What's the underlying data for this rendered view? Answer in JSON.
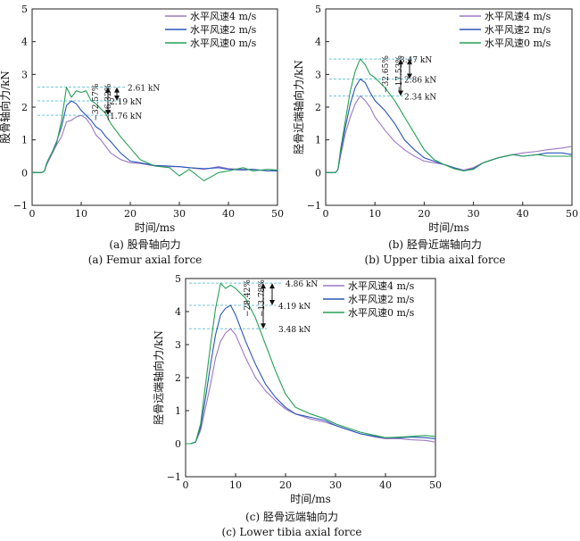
{
  "figure": {
    "panels": [
      {
        "id": "a",
        "caption_cn": "(a) 股骨轴向力",
        "caption_en": "(a) Femur axial force",
        "ylabel": "股骨轴向力/kN",
        "xlabel": "时间/ms"
      },
      {
        "id": "b",
        "caption_cn": "(b) 胫骨近端轴向力",
        "caption_en": "(b) Upper tibia aixal force",
        "ylabel": "胫骨近端轴向力/kN",
        "xlabel": "时间/ms"
      },
      {
        "id": "c",
        "caption_cn": "(c) 胫骨远端轴向力",
        "caption_en": "(c) Lower tibia axial force",
        "ylabel": "胫骨远端轴向力/kN",
        "xlabel": "时间/ms"
      }
    ]
  },
  "colors": {
    "s4": "#9b78c4",
    "s2": "#2a55b8",
    "s0": "#25a055",
    "ref": "#6ec6d8"
  },
  "chart_data": [
    {
      "type": "line",
      "xlabel": "时间/ms",
      "ylabel": "股骨轴向力/kN",
      "xlim": [
        0,
        50
      ],
      "ylim": [
        -1,
        5
      ],
      "xticks": [
        0,
        10,
        20,
        30,
        40,
        50
      ],
      "yticks": [
        -1,
        0,
        1,
        2,
        3,
        4,
        5
      ],
      "legend": "top-right",
      "annotations": {
        "values": [
          "2.61 kN",
          "2.19 kN",
          "1.76 kN"
        ],
        "percents": [
          "32.57%",
          "16.32%"
        ]
      },
      "series": [
        {
          "name": "水平风速4 m/s",
          "color": "#9b78c4",
          "x": [
            0,
            1,
            2,
            2.5,
            3,
            4,
            5,
            6,
            7,
            8,
            9,
            10,
            11,
            12,
            13,
            14,
            15,
            16,
            18,
            20,
            22,
            25,
            28,
            30,
            32,
            35,
            38,
            40,
            43,
            45,
            48,
            50
          ],
          "y": [
            0,
            0,
            0,
            0.05,
            0.25,
            0.55,
            0.85,
            1.1,
            1.55,
            1.6,
            1.7,
            1.75,
            1.65,
            1.45,
            1.15,
            1,
            0.8,
            0.6,
            0.4,
            0.3,
            0.28,
            0.2,
            0.18,
            0.18,
            0.15,
            0.1,
            0.18,
            0.12,
            0.1,
            0.1,
            0.05,
            0.08
          ]
        },
        {
          "name": "水平风速2 m/s",
          "color": "#2a55b8",
          "x": [
            0,
            1,
            2,
            2.5,
            3,
            4,
            5,
            6,
            7,
            8,
            9,
            10,
            11,
            12,
            13,
            14,
            15,
            16,
            18,
            20,
            22,
            25,
            28,
            30,
            32,
            35,
            38,
            40,
            43,
            45,
            48,
            50
          ],
          "y": [
            0,
            0,
            0,
            0.05,
            0.3,
            0.6,
            0.95,
            1.4,
            2.05,
            2.19,
            2.1,
            1.9,
            1.75,
            1.6,
            1.4,
            1.3,
            1.1,
            0.95,
            0.6,
            0.35,
            0.3,
            0.22,
            0.2,
            0.18,
            0.15,
            0.12,
            0.15,
            0.1,
            0.08,
            0.1,
            0.05,
            0.05
          ]
        },
        {
          "name": "水平风速0 m/s",
          "color": "#25a055",
          "x": [
            0,
            1,
            2,
            2.5,
            3,
            4,
            5,
            6,
            7,
            8,
            9,
            10,
            11,
            12,
            13,
            14,
            15,
            16,
            18,
            20,
            22,
            25,
            28,
            30,
            32,
            35,
            38,
            40,
            43,
            45,
            48,
            50
          ],
          "y": [
            0,
            0,
            0,
            0.05,
            0.3,
            0.6,
            0.9,
            1.6,
            2.61,
            2.3,
            2.5,
            2.45,
            2.5,
            2.2,
            2.1,
            1.95,
            1.8,
            1.5,
            1.1,
            0.75,
            0.4,
            0.2,
            0.15,
            -0.1,
            0.1,
            -0.25,
            0,
            0.05,
            0.15,
            0.05,
            0.1,
            0.08
          ]
        }
      ]
    },
    {
      "type": "line",
      "xlabel": "时间/ms",
      "ylabel": "胫骨近端轴向力/kN",
      "xlim": [
        0,
        50
      ],
      "ylim": [
        -1,
        5
      ],
      "xticks": [
        0,
        10,
        20,
        30,
        40,
        50
      ],
      "yticks": [
        -1,
        0,
        1,
        2,
        3,
        4,
        5
      ],
      "legend": "top-right",
      "annotations": {
        "values": [
          "3.47 kN",
          "2.86 kN",
          "2.34 kN"
        ],
        "percents": [
          "32.65%",
          "17.53%"
        ]
      },
      "series": [
        {
          "name": "水平风速4 m/s",
          "color": "#9b78c4",
          "x": [
            0,
            1,
            2,
            2.5,
            3,
            4,
            5,
            6,
            7,
            8,
            9,
            10,
            12,
            14,
            16,
            18,
            20,
            22,
            24,
            26,
            28,
            30,
            32,
            35,
            38,
            40,
            43,
            45,
            48,
            50
          ],
          "y": [
            0,
            0,
            0,
            0.1,
            0.5,
            1.2,
            1.7,
            2.1,
            2.34,
            2.2,
            2,
            1.7,
            1.3,
            0.95,
            0.7,
            0.5,
            0.35,
            0.3,
            0.25,
            0.15,
            0.08,
            0.15,
            0.3,
            0.45,
            0.55,
            0.6,
            0.65,
            0.7,
            0.75,
            0.8
          ]
        },
        {
          "name": "水平风速2 m/s",
          "color": "#2a55b8",
          "x": [
            0,
            1,
            2,
            2.5,
            3,
            4,
            5,
            6,
            7,
            8,
            9,
            10,
            12,
            14,
            16,
            18,
            20,
            22,
            24,
            26,
            28,
            30,
            32,
            35,
            38,
            40,
            43,
            45,
            48,
            50
          ],
          "y": [
            0,
            0,
            0,
            0.1,
            0.6,
            1.4,
            2.1,
            2.6,
            2.86,
            2.75,
            2.45,
            2.2,
            1.9,
            1.5,
            1,
            0.7,
            0.45,
            0.35,
            0.25,
            0.15,
            0.05,
            0.12,
            0.3,
            0.45,
            0.55,
            0.5,
            0.55,
            0.6,
            0.6,
            0.55
          ]
        },
        {
          "name": "水平风速0 m/s",
          "color": "#25a055",
          "x": [
            0,
            1,
            2,
            2.5,
            3,
            4,
            5,
            6,
            7,
            8,
            9,
            10,
            12,
            14,
            16,
            18,
            20,
            22,
            24,
            26,
            28,
            30,
            32,
            35,
            38,
            40,
            43,
            45,
            48,
            50
          ],
          "y": [
            0,
            0,
            0,
            0.1,
            0.7,
            1.6,
            2.5,
            3.1,
            3.47,
            3.3,
            3,
            2.9,
            2.6,
            2.2,
            1.7,
            1.2,
            0.7,
            0.4,
            0.25,
            0.12,
            0.05,
            0.1,
            0.3,
            0.45,
            0.55,
            0.5,
            0.55,
            0.5,
            0.5,
            0.5
          ]
        }
      ]
    },
    {
      "type": "line",
      "xlabel": "时间/ms",
      "ylabel": "胫骨远端轴向力/kN",
      "xlim": [
        0,
        50
      ],
      "ylim": [
        -1,
        5
      ],
      "xticks": [
        0,
        10,
        20,
        30,
        40,
        50
      ],
      "yticks": [
        -1,
        0,
        1,
        2,
        3,
        4,
        5
      ],
      "legend": "top-right",
      "annotations": {
        "values": [
          "4.86 kN",
          "4.19 kN",
          "3.48 kN"
        ],
        "percents": [
          "28.42%",
          "13.78%"
        ]
      },
      "series": [
        {
          "name": "水平风速4 m/s",
          "color": "#9b78c4",
          "x": [
            0,
            1,
            2,
            3,
            4,
            5,
            6,
            7,
            8,
            9,
            10,
            12,
            14,
            16,
            18,
            20,
            22,
            25,
            28,
            30,
            32,
            35,
            38,
            40,
            43,
            45,
            48,
            50
          ],
          "y": [
            0,
            0,
            0.05,
            0.4,
            1.1,
            1.8,
            2.6,
            3.1,
            3.35,
            3.48,
            3.3,
            2.6,
            2,
            1.6,
            1.3,
            1.05,
            0.9,
            0.75,
            0.65,
            0.55,
            0.45,
            0.3,
            0.2,
            0.15,
            0.15,
            0.12,
            0.1,
            0.05
          ]
        },
        {
          "name": "水平风速2 m/s",
          "color": "#2a55b8",
          "x": [
            0,
            1,
            2,
            3,
            4,
            5,
            6,
            7,
            8,
            9,
            10,
            12,
            14,
            16,
            18,
            20,
            22,
            25,
            28,
            30,
            32,
            35,
            38,
            40,
            43,
            45,
            48,
            50
          ],
          "y": [
            0,
            0,
            0.05,
            0.5,
            1.4,
            2.4,
            3.3,
            3.9,
            4.1,
            4.19,
            3.9,
            3.1,
            2.4,
            1.8,
            1.4,
            1.1,
            0.9,
            0.8,
            0.7,
            0.55,
            0.45,
            0.3,
            0.22,
            0.18,
            0.18,
            0.2,
            0.18,
            0.15
          ]
        },
        {
          "name": "水平风速0 m/s",
          "color": "#25a055",
          "x": [
            0,
            1,
            2,
            3,
            4,
            5,
            6,
            7,
            8,
            9,
            10,
            12,
            14,
            16,
            18,
            20,
            22,
            25,
            28,
            30,
            32,
            35,
            38,
            40,
            43,
            45,
            48,
            50
          ],
          "y": [
            0,
            0,
            0.05,
            0.6,
            1.8,
            3,
            4.1,
            4.86,
            4.7,
            4.8,
            4.7,
            4.4,
            3.8,
            3,
            2.2,
            1.5,
            1.1,
            0.9,
            0.75,
            0.6,
            0.5,
            0.35,
            0.25,
            0.18,
            0.2,
            0.22,
            0.25,
            0.22
          ]
        }
      ]
    }
  ]
}
